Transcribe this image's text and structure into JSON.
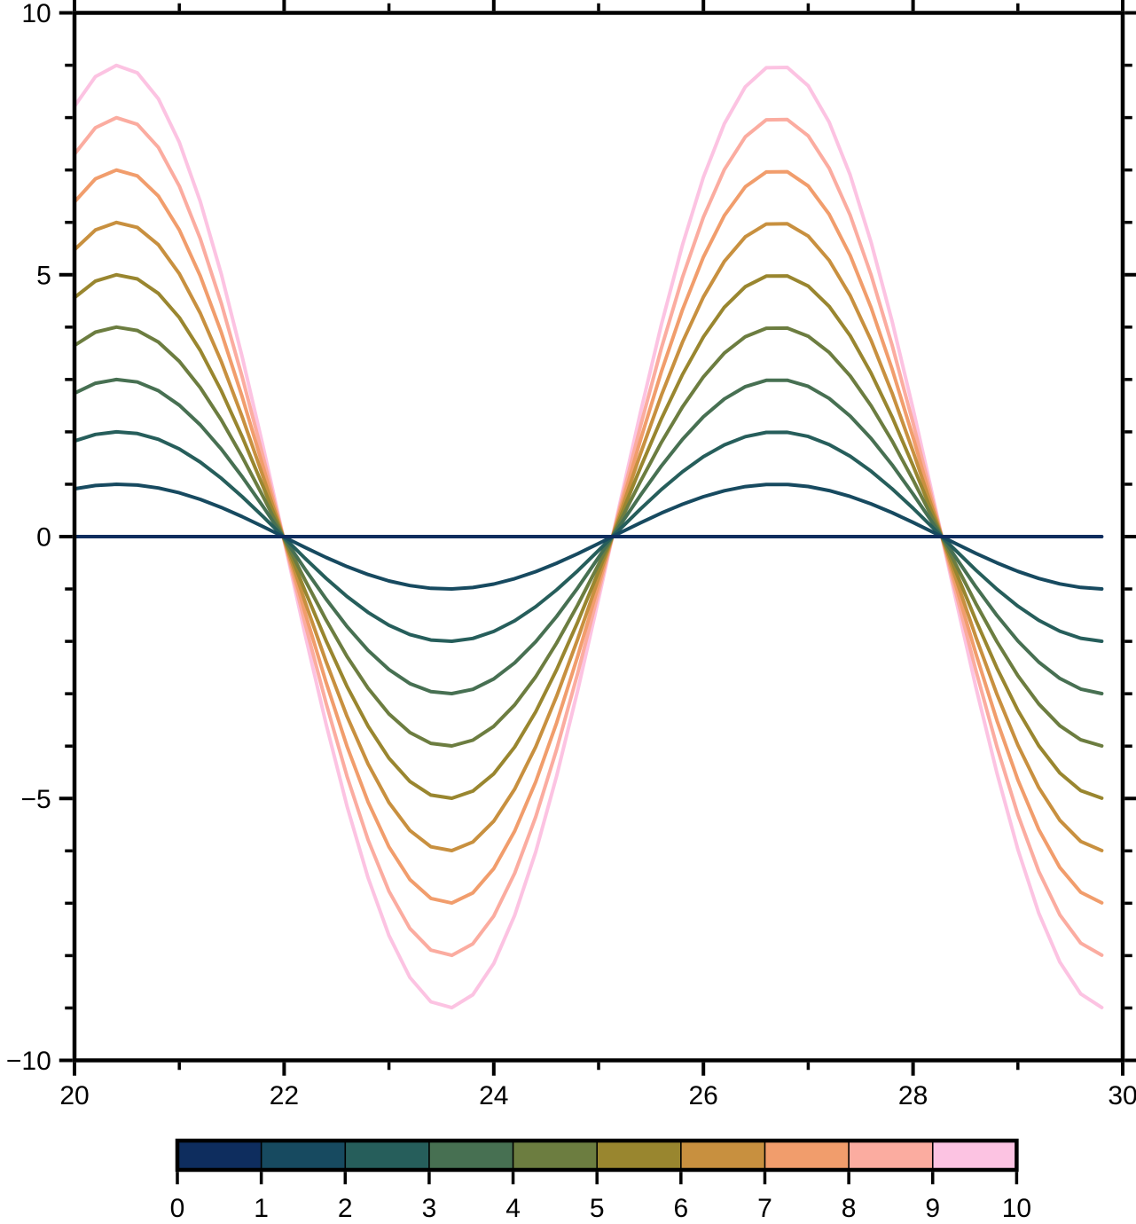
{
  "chart_data": {
    "type": "line",
    "title": "",
    "xlabel": "",
    "ylabel": "",
    "xlim": [
      20,
      30
    ],
    "ylim": [
      -10,
      10
    ],
    "grid": false,
    "function": "y = amplitude * sin(x)",
    "x_start": 20,
    "x_end": 29.8,
    "x_step": 0.2,
    "draw_order": "descending amplitude (lowest amplitude drawn last, on top)",
    "series": [
      {
        "name": "amplitude 0",
        "amplitude": 0,
        "color": "#0e2d5e"
      },
      {
        "name": "amplitude 1",
        "amplitude": 1,
        "color": "#174a60"
      },
      {
        "name": "amplitude 2",
        "amplitude": 2,
        "color": "#265e5b"
      },
      {
        "name": "amplitude 3",
        "amplitude": 3,
        "color": "#477052"
      },
      {
        "name": "amplitude 4",
        "amplitude": 4,
        "color": "#6c7d40"
      },
      {
        "name": "amplitude 5",
        "amplitude": 5,
        "color": "#99862f"
      },
      {
        "name": "amplitude 6",
        "amplitude": 6,
        "color": "#c8903f"
      },
      {
        "name": "amplitude 7",
        "amplitude": 7,
        "color": "#f19d6c"
      },
      {
        "name": "amplitude 8",
        "amplitude": 8,
        "color": "#fbaca0"
      },
      {
        "name": "amplitude 9",
        "amplitude": 9,
        "color": "#fcc3e2"
      }
    ],
    "x_axis": {
      "major_tick_values": [
        20,
        22,
        24,
        26,
        28,
        30
      ],
      "major_tick_labels": [
        "20",
        "22",
        "24",
        "26",
        "28",
        "30"
      ],
      "minor_tick_values": [
        21,
        23,
        25,
        27,
        29
      ]
    },
    "y_axis": {
      "major_tick_values": [
        -10,
        -5,
        0,
        5,
        10
      ],
      "major_tick_labels": [
        "−10",
        "−5",
        "0",
        "5",
        "10"
      ],
      "minor_tick_values": [
        -9,
        -8,
        -7,
        -6,
        -4,
        -3,
        -2,
        -1,
        1,
        2,
        3,
        4,
        6,
        7,
        8,
        9
      ]
    },
    "colorbar": {
      "position": "bottom",
      "min": 0,
      "max": 10,
      "step": 1,
      "tick_labels": [
        "0",
        "1",
        "2",
        "3",
        "4",
        "5",
        "6",
        "7",
        "8",
        "9",
        "10"
      ],
      "segment_colors": [
        "#0e2d5e",
        "#174a60",
        "#265e5b",
        "#477052",
        "#6c7d40",
        "#99862f",
        "#c8903f",
        "#f19d6c",
        "#fbaca0",
        "#fcc3e2"
      ]
    }
  },
  "colors": {
    "frame": "#000000",
    "background": "#ffffff",
    "tick": "#000000",
    "label_text": "#000000"
  }
}
